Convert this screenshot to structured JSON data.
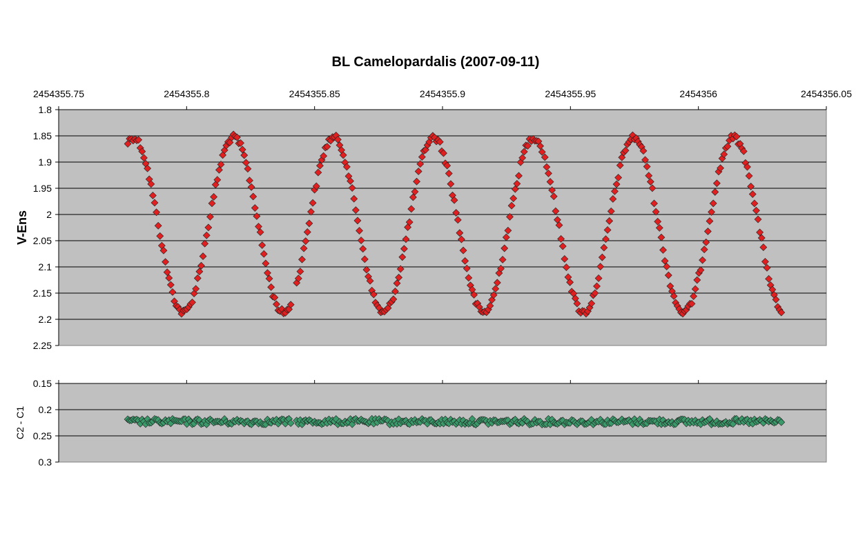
{
  "chart_data": {
    "type": "scatter",
    "title": "BL Camelopardalis (2007-09-11)",
    "x_tick_labels": [
      "2454355.75",
      "2454355.8",
      "2454355.85",
      "2454355.9",
      "2454355.95",
      "2454356",
      "2454356.05"
    ],
    "x_ticks": [
      2454355.75,
      2454355.8,
      2454355.85,
      2454355.9,
      2454355.95,
      2454356.0,
      2454356.05
    ],
    "xlim": [
      2454355.75,
      2454356.05
    ],
    "colors": {
      "plot_bg": "#c0c0c0",
      "variable": "#e02020",
      "comparison": "#3a9a6a",
      "grid": "#000000"
    },
    "panels": [
      {
        "name": "variable",
        "ylabel": "V-Ens",
        "ylim": [
          1.8,
          2.25
        ],
        "y_inverted": true,
        "y_tick_labels": [
          "1.8",
          "1.85",
          "1.9",
          "1.95",
          "2",
          "2.05",
          "2.1",
          "2.15",
          "2.2",
          "2.25"
        ],
        "y_ticks": [
          1.8,
          1.85,
          1.9,
          1.95,
          2.0,
          2.05,
          2.1,
          2.15,
          2.2,
          2.25
        ],
        "grid": true,
        "marker": "diamond",
        "color": "#e02020",
        "model": {
          "segments": [
            [
              2454355.777,
              2454355.841
            ],
            [
              2454355.843,
              2454355.939
            ],
            [
              2454355.94,
              2454356.033
            ]
          ],
          "step": 0.0007,
          "period": 0.0391,
          "phase_zero": 2454355.8183,
          "mean": 2.02,
          "amplitude": 0.167,
          "noise": 0.006
        }
      },
      {
        "name": "comparison",
        "ylabel": "C2 - C1",
        "ylim": [
          0.15,
          0.3
        ],
        "y_inverted": true,
        "y_tick_labels": [
          "0.15",
          "0.2",
          "0.25",
          "0.3"
        ],
        "y_ticks": [
          0.15,
          0.2,
          0.25,
          0.3
        ],
        "grid": true,
        "marker": "diamond",
        "color": "#3a9a6a",
        "model": {
          "segments": [
            [
              2454355.777,
              2454355.841
            ],
            [
              2454355.843,
              2454355.939
            ],
            [
              2454355.94,
              2454356.033
            ]
          ],
          "step": 0.0007,
          "mean": 0.223,
          "noise": 0.0055
        }
      }
    ]
  }
}
